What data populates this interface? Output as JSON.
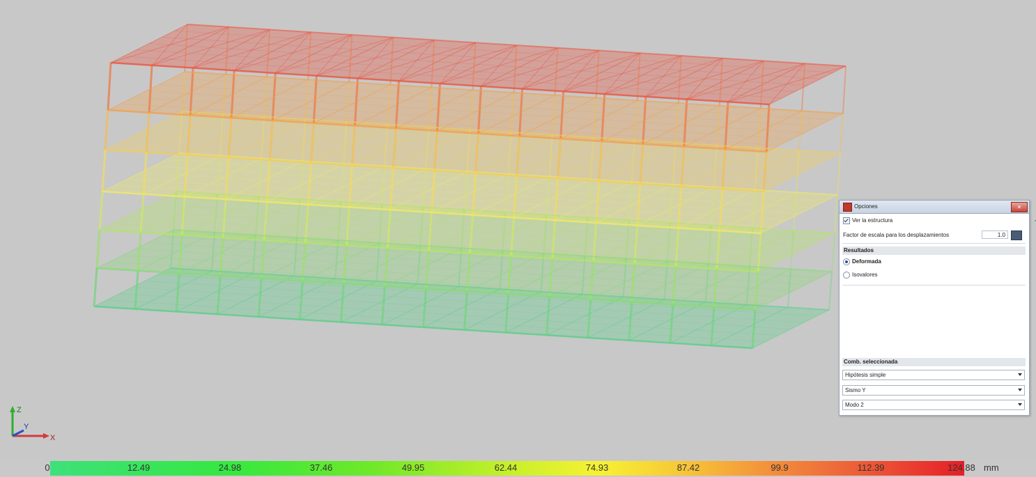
{
  "panel": {
    "title": "Opciones",
    "show_structure_label": "Ver la estructura",
    "show_structure_checked": true,
    "scale_factor_label": "Factor de escala para los desplazamientos",
    "scale_factor_value": "1.0",
    "results_header": "Resultados",
    "result_options": [
      {
        "label": "Deformada",
        "selected": true
      },
      {
        "label": "Isovalores",
        "selected": false
      }
    ],
    "combination_header": "Comb. seleccionada",
    "dropdowns": [
      {
        "value": "Hipótesis simple"
      },
      {
        "value": "Sismo Y"
      },
      {
        "value": "Modo 2"
      }
    ]
  },
  "legend": {
    "ticks": [
      "0",
      "12.49",
      "24.98",
      "37.46",
      "49.95",
      "62.44",
      "74.93",
      "87.42",
      "99.9",
      "112.39",
      "124.88"
    ],
    "unit": "mm"
  },
  "axes": {
    "z": "Z",
    "y": "Y",
    "x": "X"
  },
  "colors": {
    "low": "#3ee07a",
    "mid": "#f7f233",
    "high": "#e21f26",
    "background": "#c8c8c8"
  }
}
